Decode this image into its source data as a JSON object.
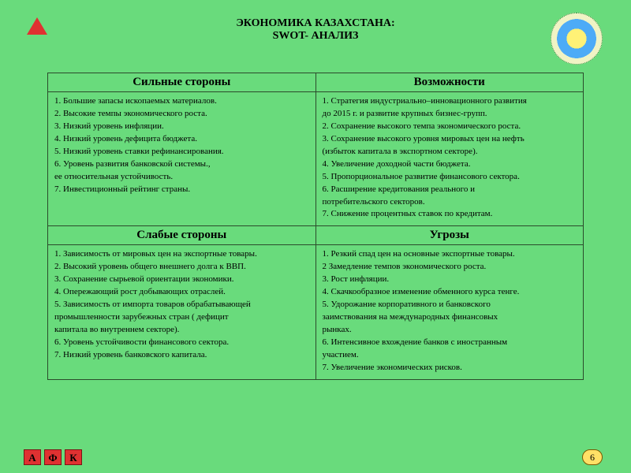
{
  "title_line1": "ЭКОНОМИКА КАЗАХСТАНА:",
  "title_line2": "SWOT- АНАЛИЗ",
  "colors": {
    "background": "#69db7c",
    "accent_red": "#e03131",
    "border": "#2b4a2b",
    "page_badge_bg": "#ffe066"
  },
  "typography": {
    "family": "Times New Roman",
    "title_fontsize": 14,
    "header_fontsize": 15,
    "cell_fontsize": 11
  },
  "swot": {
    "strengths": {
      "header": "Сильные стороны",
      "lines": [
        "1. Большие запасы ископаемых материалов.",
        "2. Высокие темпы экономического роста.",
        "3.  Низкий уровень инфляции.",
        "4.  Низкий уровень дефицита бюджета.",
        "5. Низкий уровень ставки рефинансирования.",
        "6. Уровень развития банковской системы.,",
        "    ее относительная  устойчивость.",
        "7.  Инвестиционный рейтинг страны."
      ]
    },
    "opportunities": {
      "header": "Возможности",
      "lines": [
        "1.  Стратегия  индустриально–инновационного развития",
        "     до 2015 г.  и развитие  крупных  бизнес-групп.",
        "2.  Сохранение высокого темпа экономического роста.",
        "3.  Сохранение высокого уровня мировых цен на нефть",
        "    (избыток капитала в экспортном секторе).",
        "4.  Увеличение доходной части бюджета.",
        "5.  Пропорциональное развитие финансового сектора.",
        "6.  Расширение кредитования реального и",
        "    потребительского секторов.",
        "7.  Снижение процентных ставок по кредитам."
      ]
    },
    "weaknesses": {
      "header": "Слабые стороны",
      "lines": [
        "1. Зависимость от мировых цен на экспортные товары.",
        "2. Высокий уровень общего внешнего долга к  ВВП.",
        "3. Сохранение сырьевой ориентации экономики.",
        "4. Опережающий рост добывающих отраслей.",
        "5. Зависимость от импорта товаров  обрабатывающей",
        "    промышленности   зарубежных стран ( дефицит",
        "    капитала во  внутреннем секторе).",
        "6. Уровень устойчивости финансового сектора.",
        "7. Низкий уровень банковского капитала."
      ]
    },
    "threats": {
      "header": "Угрозы",
      "lines": [
        "1. Резкий спад цен на основные экспортные товары.",
        "2  Замедление темпов  экономического роста.",
        "3. Рост инфляции.",
        "4. Скачкообразное изменение обменного курса тенге.",
        "5.  Удорожание  корпоративного и банковского",
        "    заимствования на   международных финансовых",
        "    рынках.",
        "6. Интенсивное вхождение банков с иностранным",
        "    участием.",
        "7. Увеличение экономических рисков."
      ]
    }
  },
  "badges": [
    "А",
    "Ф",
    "К"
  ],
  "page_number": "6"
}
